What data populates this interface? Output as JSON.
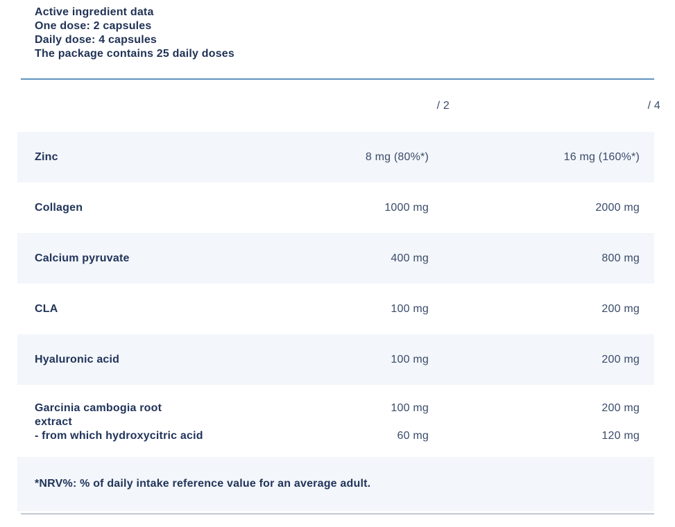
{
  "intro": {
    "line1": "Active ingredient data",
    "line2": "One dose: 2 capsules",
    "line3": "Daily dose: 4 capsules",
    "line4": "The package contains 25 daily doses"
  },
  "table": {
    "columns": {
      "per_dose": "/ 2",
      "per_day": "/ 4"
    },
    "rows": [
      {
        "label": "Zinc",
        "per2": "8 mg (80%*)",
        "per4": "16 mg (160%*)"
      },
      {
        "label": "Collagen",
        "per2": "1000 mg",
        "per4": "2000 mg"
      },
      {
        "label": "Calcium pyruvate",
        "per2": "400 mg",
        "per4": "800 mg"
      },
      {
        "label": "CLA",
        "per2": "100 mg",
        "per4": "200 mg"
      },
      {
        "label": "Hyaluronic acid",
        "per2": "100 mg",
        "per4": "200 mg"
      },
      {
        "label": "Garcinia cambogia root extract",
        "per2": "100 mg",
        "per4": "200 mg",
        "sub_label": "- from which hydroxycitric acid",
        "sub_per2": "60 mg",
        "sub_per4": "120 mg"
      }
    ],
    "footnote": "*NRV%: % of daily intake reference value for an average adult."
  },
  "colors": {
    "text_navy": "#21345a",
    "accent_rule": "#5d92bd",
    "row_band": "#f3f6fa",
    "bottom_rule": "#c3c8d4"
  }
}
